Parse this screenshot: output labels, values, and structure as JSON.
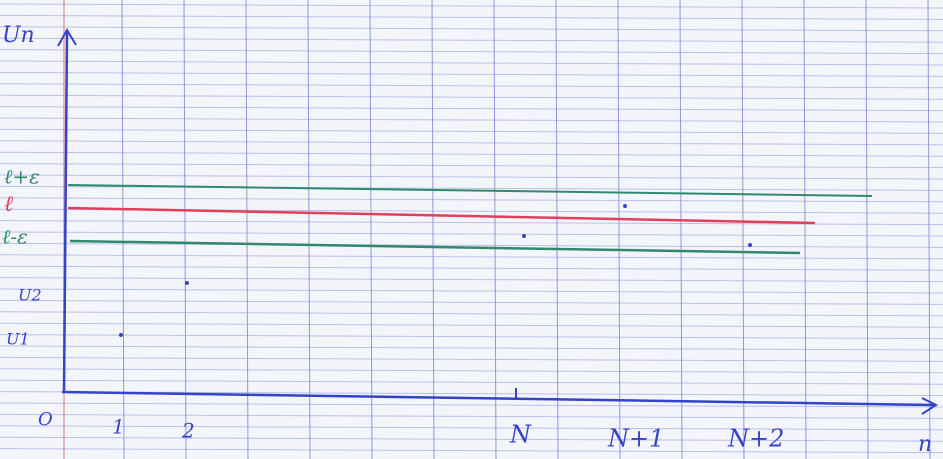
{
  "axes": {
    "y_label": "Un",
    "x_label": "n",
    "origin": "O"
  },
  "x_labels": [
    "1",
    "2",
    "N",
    "N+1",
    "N+2"
  ],
  "y_labels": [
    "ℓ+ε",
    "ℓ",
    "ℓ-ε",
    "U2",
    "U1"
  ]
}
